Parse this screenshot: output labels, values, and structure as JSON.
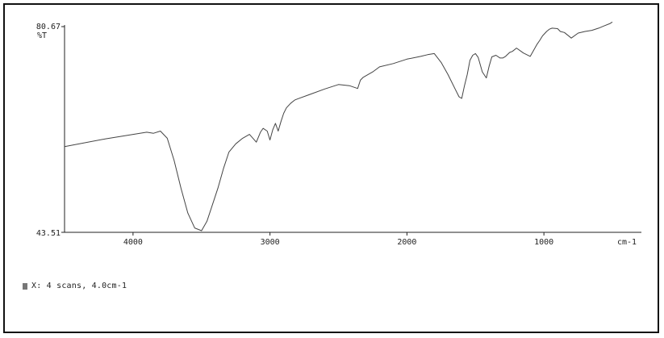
{
  "chart_data": {
    "type": "line",
    "xlabel": "cm-1",
    "ylabel": "%T",
    "x_reversed": true,
    "xlim": [
      4500,
      400
    ],
    "ylim": [
      43.51,
      80.67
    ],
    "y_tick_labels": [
      "80.67",
      "43.51"
    ],
    "x_tick_labels": [
      "4000",
      "3000",
      "2000",
      "1000"
    ],
    "x_ticks": [
      4000,
      3000,
      2000,
      1000
    ],
    "grid": false,
    "line_color": "#444444",
    "series": [
      {
        "x": [
          4500,
          4200,
          3900,
          3850,
          3800,
          3750,
          3700,
          3650,
          3600,
          3550,
          3500,
          3460,
          3420,
          3380,
          3340,
          3300,
          3250,
          3200,
          3150,
          3100,
          3070,
          3050,
          3020,
          3000,
          2980,
          2960,
          2940,
          2920,
          2900,
          2880,
          2850,
          2820,
          2800,
          2700,
          2600,
          2500,
          2420,
          2360,
          2340,
          2320,
          2300,
          2250,
          2200,
          2100,
          2000,
          1900,
          1850,
          1800,
          1750,
          1700,
          1650,
          1620,
          1600,
          1580,
          1560,
          1540,
          1520,
          1500,
          1480,
          1450,
          1420,
          1400,
          1380,
          1350,
          1320,
          1300,
          1280,
          1250,
          1230,
          1200,
          1150,
          1100,
          1050,
          1030,
          1010,
          980,
          960,
          940,
          900,
          880,
          850,
          800,
          750,
          700,
          650,
          600,
          560,
          520,
          500
        ],
        "y": [
          59.0,
          60.4,
          61.6,
          61.4,
          61.8,
          60.5,
          56.5,
          51.5,
          47.0,
          44.3,
          43.8,
          45.5,
          48.5,
          51.5,
          55.0,
          58.0,
          59.5,
          60.5,
          61.2,
          59.8,
          61.6,
          62.3,
          61.8,
          60.2,
          62.0,
          63.2,
          61.8,
          63.5,
          65.0,
          66.0,
          66.8,
          67.4,
          67.6,
          68.5,
          69.4,
          70.2,
          70.0,
          69.5,
          71.0,
          71.5,
          71.8,
          72.5,
          73.4,
          74.0,
          74.8,
          75.3,
          75.6,
          75.8,
          74.2,
          72.0,
          69.5,
          68.0,
          67.7,
          70.0,
          72.0,
          74.6,
          75.5,
          75.8,
          75.1,
          72.5,
          71.4,
          73.5,
          75.2,
          75.5,
          75.0,
          75.0,
          75.3,
          76.0,
          76.2,
          76.8,
          75.9,
          75.3,
          77.5,
          78.2,
          79.0,
          79.8,
          80.2,
          80.4,
          80.3,
          79.8,
          79.6,
          78.6,
          79.5,
          79.8,
          80.0,
          80.4,
          80.8,
          81.2,
          81.5
        ]
      }
    ]
  },
  "legend": {
    "swatch_color": "#777777",
    "label": "X: 4 scans, 4.0cm-1"
  }
}
